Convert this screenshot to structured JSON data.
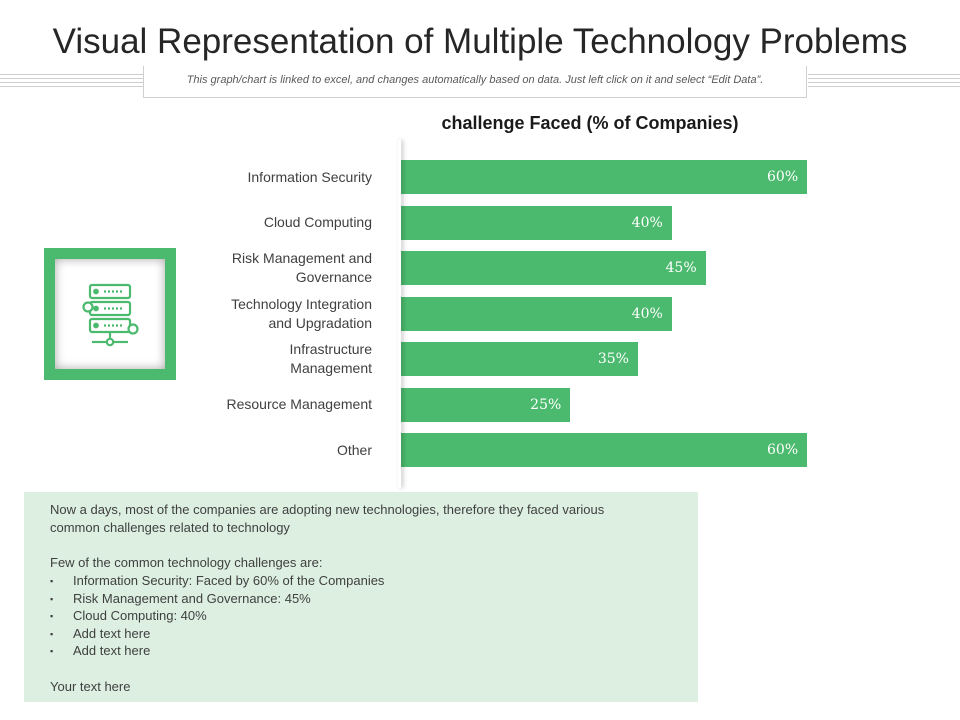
{
  "page": {
    "title": "Visual Representation of Multiple Technology Problems",
    "subtitle": "This graph/chart  is linked to excel,  and changes automatically  based on data.  Just left click on it and select “Edit Data”."
  },
  "chart_data": {
    "type": "bar",
    "orientation": "horizontal",
    "title": "challenge Faced (% of Companies)",
    "categories": [
      "Information Security",
      "Cloud Computing",
      "Risk Management and Governance",
      "Technology Integration and Upgradation",
      "Infrastructure Management",
      "Resource Management",
      "Other"
    ],
    "category_lines": [
      [
        "Information Security"
      ],
      [
        "Cloud Computing"
      ],
      [
        "Risk Management and",
        "Governance"
      ],
      [
        "Technology Integration",
        "and Upgradation"
      ],
      [
        "Infrastructure",
        "Management"
      ],
      [
        "Resource Management"
      ],
      [
        "Other"
      ]
    ],
    "values": [
      60,
      40,
      45,
      40,
      35,
      25,
      60
    ],
    "value_labels": [
      "60%",
      "40%",
      "45%",
      "40%",
      "35%",
      "25%",
      "60%"
    ],
    "xlim": [
      0,
      60
    ],
    "grid": false,
    "bar_color": "#4cba6e"
  },
  "colors": {
    "accent": "#4cba6e",
    "text_panel": "#dcefe1"
  },
  "icon": {
    "name": "server-network-icon"
  },
  "text_panel": {
    "intro_line1": "Now a days, most of the companies are adopting new technologies, therefore they faced various",
    "intro_line2": "common challenges related to technology",
    "list_heading": "Few of the common technology challenges are:",
    "bullets": [
      "Information Security: Faced by 60% of the Companies",
      "Risk Management and Governance: 45%",
      "Cloud Computing:  40%",
      "Add text here",
      "Add text here"
    ],
    "footer": "Your text here"
  }
}
